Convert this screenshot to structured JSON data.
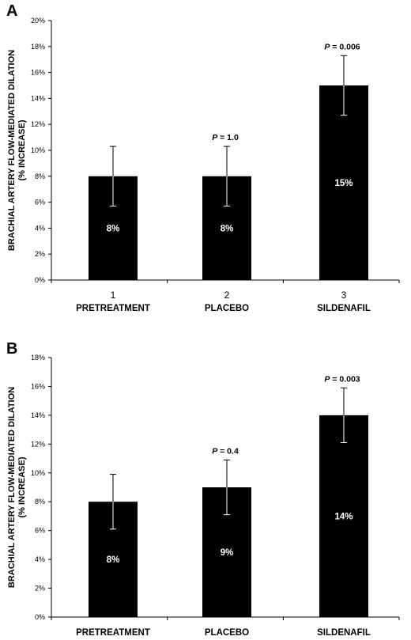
{
  "chart_data": [
    {
      "type": "bar",
      "panel_label": "A",
      "categories": [
        "PRETREATMENT",
        "PLACEBO",
        "SILDENAFIL"
      ],
      "category_numbers": [
        "1",
        "2",
        "3"
      ],
      "values": [
        8,
        8,
        15
      ],
      "error": [
        2.3,
        2.3,
        2.3
      ],
      "data_labels": [
        "8%",
        "8%",
        "15%"
      ],
      "annotations": [
        "",
        "P = 1.0",
        "P = 0.006"
      ],
      "ylabel_line1": "BRACHIAL ARTERY FLOW-MEDIATED DILATION",
      "ylabel_line2": "(% INCREASE)",
      "ylim": [
        0,
        20
      ],
      "ytick_step": 2,
      "yticks": [
        "0%",
        "2%",
        "4%",
        "6%",
        "8%",
        "10%",
        "12%",
        "14%",
        "16%",
        "18%",
        "20%"
      ],
      "grid": false
    },
    {
      "type": "bar",
      "panel_label": "B",
      "categories": [
        "PRETREATMENT",
        "PLACEBO",
        "SILDENAFIL"
      ],
      "values": [
        8,
        9,
        14
      ],
      "error": [
        1.9,
        1.9,
        1.9
      ],
      "data_labels": [
        "8%",
        "9%",
        "14%"
      ],
      "annotations": [
        "",
        "P = 0.4",
        "P = 0.003"
      ],
      "ylabel_line1": "BRACHIAL ARTERY FLOW-MEDIATED DILATION",
      "ylabel_line2": "(% INCREASE)",
      "ylim": [
        0,
        18
      ],
      "ytick_step": 2,
      "yticks": [
        "0%",
        "2%",
        "4%",
        "6%",
        "8%",
        "10%",
        "12%",
        "14%",
        "16%",
        "18%"
      ],
      "grid": false
    }
  ],
  "colors": {
    "bar": "#000000",
    "axis": "#000000",
    "data_label": "#ffffff"
  }
}
